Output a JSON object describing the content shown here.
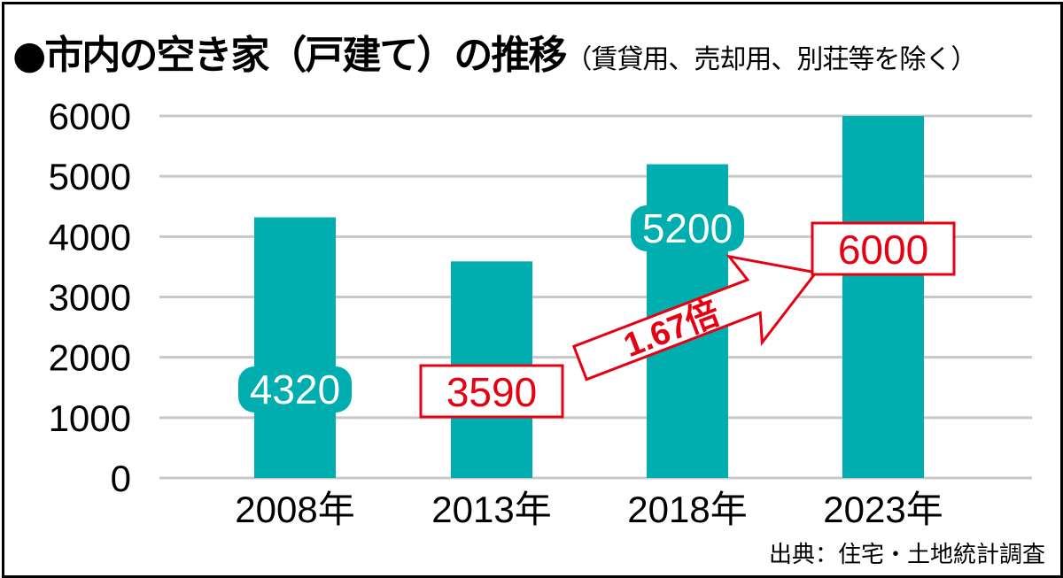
{
  "chart_data": {
    "type": "bar",
    "title": "●市内の空き家（戸建て）の推移",
    "subtitle": "（賃貸用、売却用、別荘等を除く）",
    "categories": [
      "2008年",
      "2013年",
      "2018年",
      "2023年"
    ],
    "values": [
      4320,
      3590,
      5200,
      6000
    ],
    "data_labels": [
      "4320",
      "3590",
      "5200",
      "6000"
    ],
    "highlighted": [
      false,
      true,
      false,
      true
    ],
    "yticks": [
      "0",
      "1000",
      "2000",
      "3000",
      "4000",
      "5000",
      "6000"
    ],
    "ylim": [
      0,
      6000
    ],
    "grid": true,
    "annotation": "1.67倍",
    "source": "出典：住宅・土地統計調査",
    "colors": {
      "bar": "#00aeb0",
      "accent": "#e60012",
      "grid": "#c8c8c8"
    }
  }
}
